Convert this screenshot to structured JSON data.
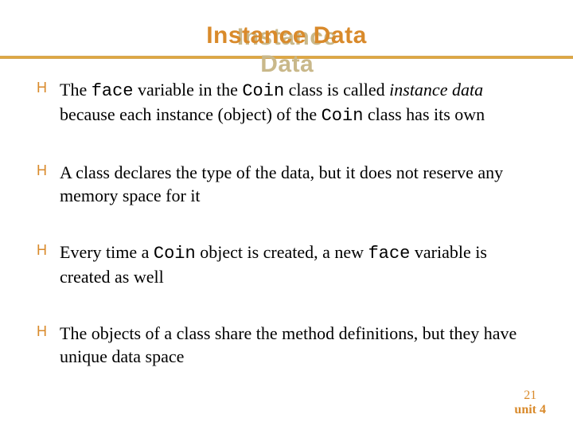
{
  "title": "Instance Data",
  "title_fontsize": 30,
  "title_color": "#d98a2b",
  "title_shadow_color": "#c9b88a",
  "rule_color": "#e0a840",
  "bullets": [
    {
      "runs": [
        {
          "t": "The "
        },
        {
          "t": "face",
          "mono": true
        },
        {
          "t": " variable in the "
        },
        {
          "t": "Coin",
          "mono": true
        },
        {
          "t": " class is called "
        },
        {
          "t": "instance data",
          "ital": true
        },
        {
          "t": " because each instance (object) of the "
        },
        {
          "t": "Coin",
          "mono": true
        },
        {
          "t": " class has its own"
        }
      ]
    },
    {
      "runs": [
        {
          "t": "A class declares the type of the data, but it does not reserve any memory space for it"
        }
      ]
    },
    {
      "runs": [
        {
          "t": "Every time a "
        },
        {
          "t": "Coin",
          "mono": true
        },
        {
          "t": " object is created, a new "
        },
        {
          "t": "face",
          "mono": true
        },
        {
          "t": " variable is created as well"
        }
      ]
    },
    {
      "runs": [
        {
          "t": "The objects of a class share the method definitions, but they have unique data space"
        }
      ]
    }
  ],
  "bullet_glyph": "H",
  "bullet_color": "#d98a2b",
  "bullet_fontsize": 18,
  "body_fontsize": 22,
  "bullet_gap": 42,
  "footer": {
    "page": "21",
    "unit": "unit 4",
    "fontsize": 16
  },
  "background": "#ffffff"
}
